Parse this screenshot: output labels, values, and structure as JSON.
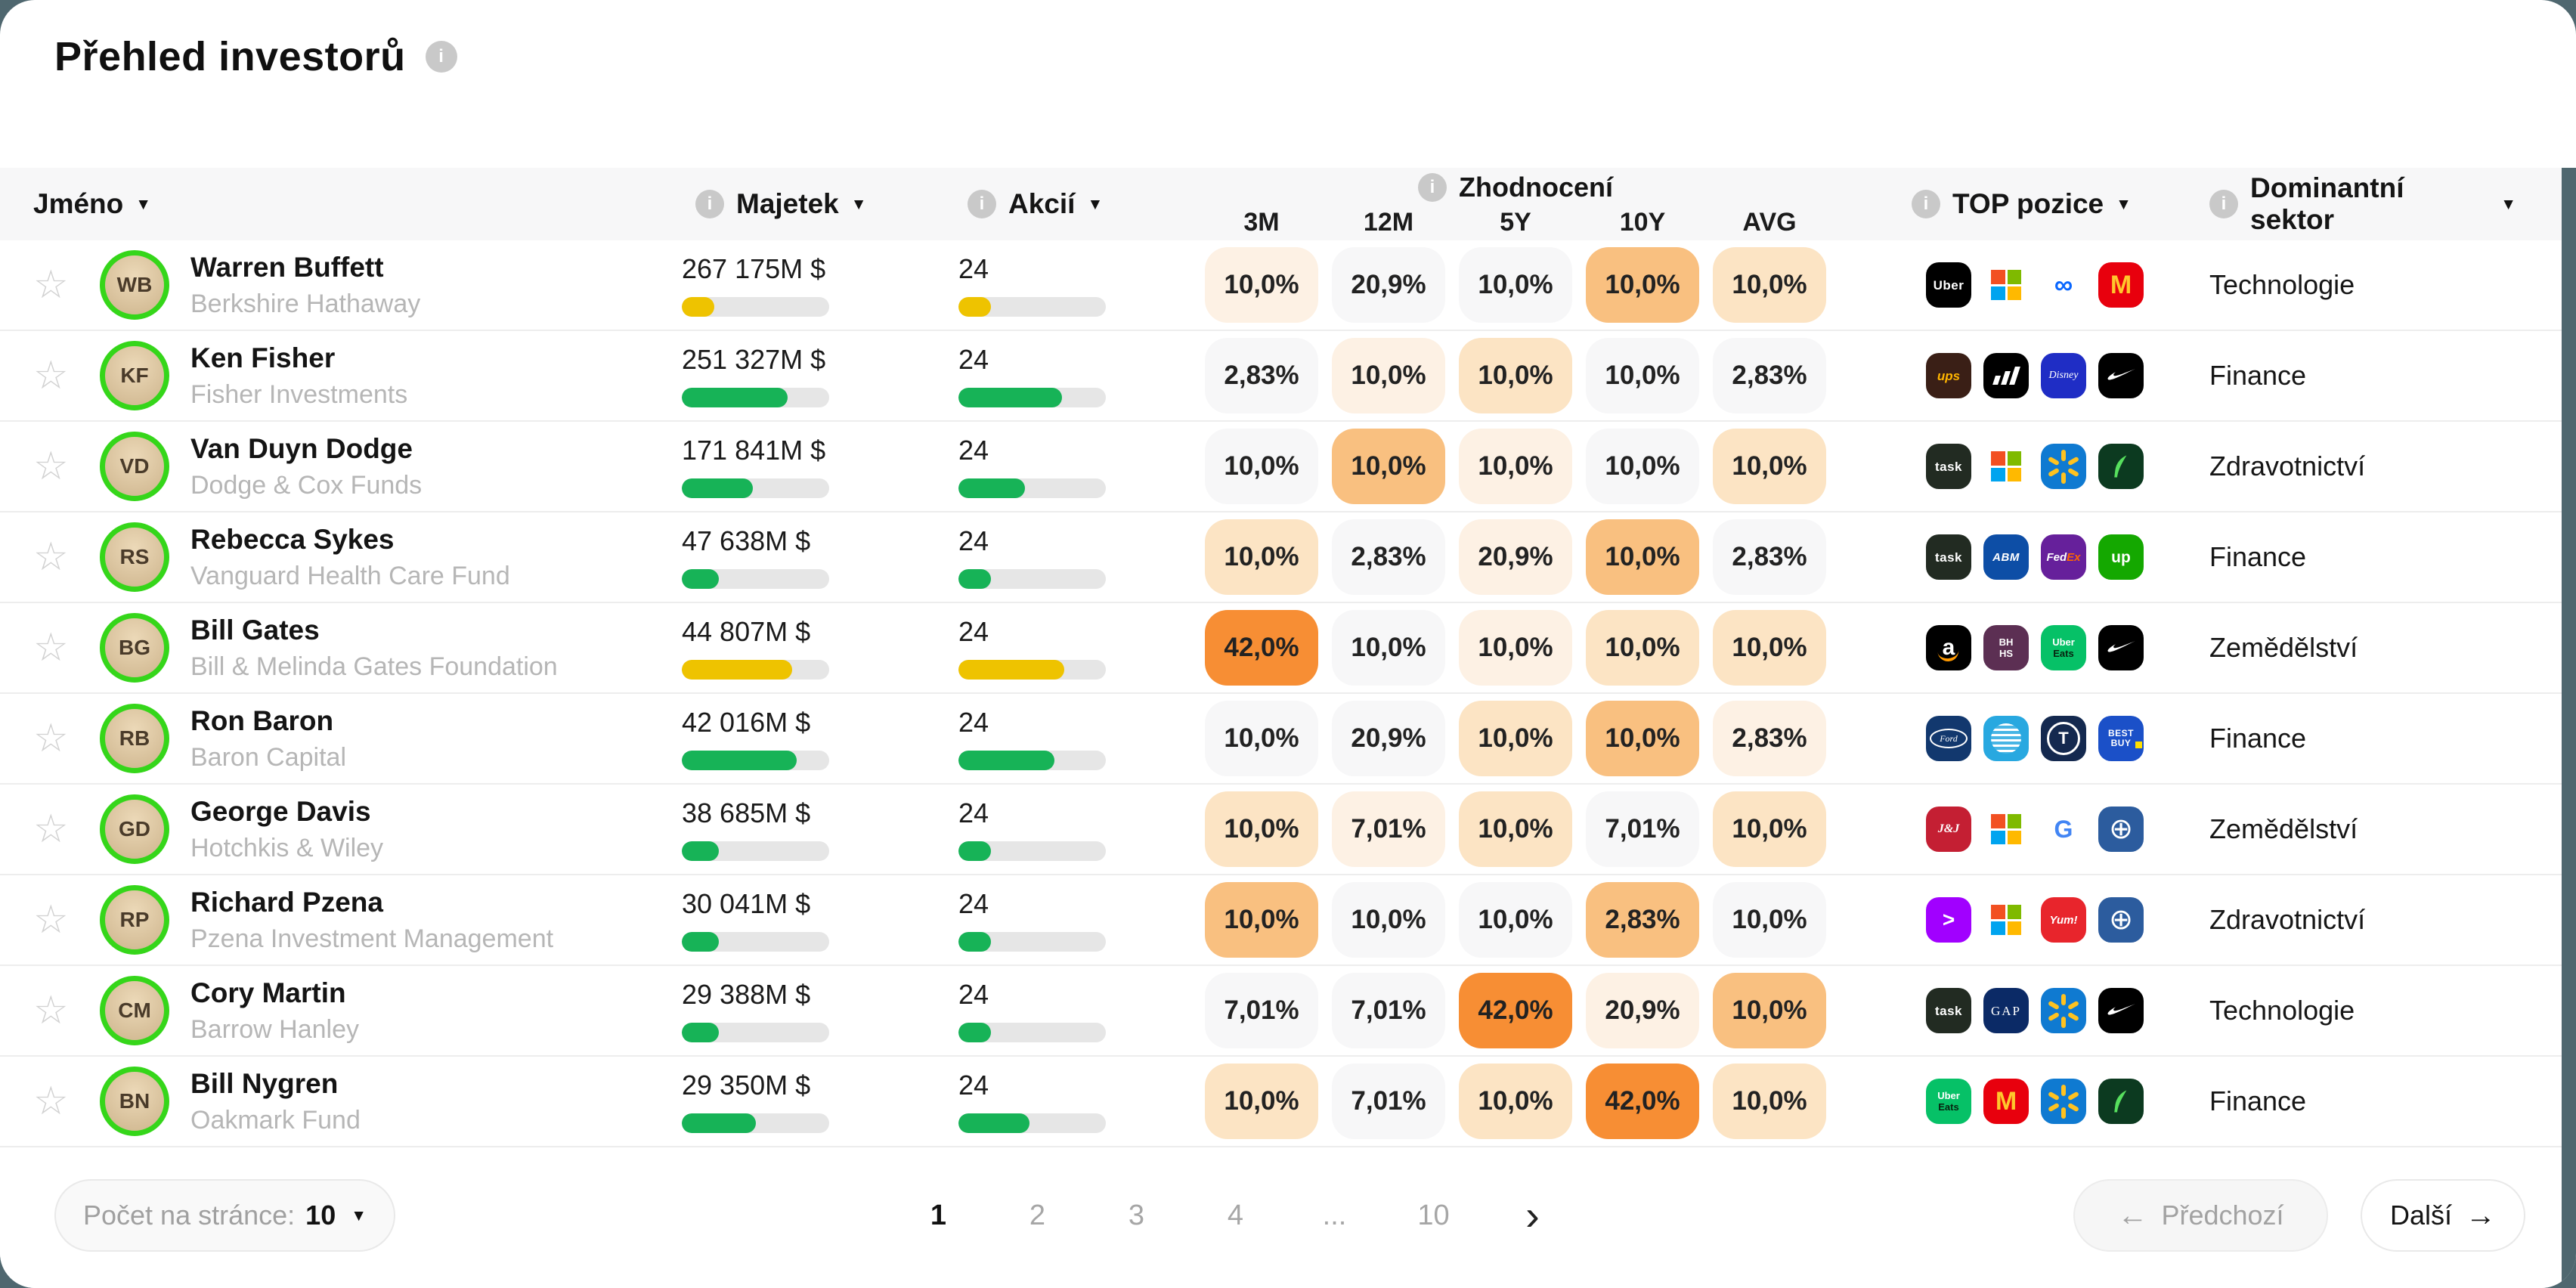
{
  "title": {
    "text": "Přehled investorů"
  },
  "header": {
    "name": "Jméno",
    "wealth": "Majetek",
    "shares": "Akcií",
    "returns": "Zhodnocení",
    "periods": [
      "3M",
      "12M",
      "5Y",
      "10Y",
      "AVG"
    ],
    "top_positions": "TOP pozice",
    "sector": "Dominantní sektor",
    "info_glyph": "i",
    "sort_caret": "▼"
  },
  "palette": {
    "cell_levels": [
      "#f7f7f8",
      "#fdf1e4",
      "#fce4c4",
      "#f9c080",
      "#f78e34"
    ],
    "bar_green": "#17b357",
    "bar_yellow": "#eec300",
    "avatar_ring": "#35d61a",
    "scrollbar": "#4f676f"
  },
  "rows": [
    {
      "name": "Warren Buffett",
      "company": "Berkshire Hathaway",
      "initials": "WB",
      "wealth": "267 175M $",
      "wealth_bar": {
        "pct": 22,
        "color": "yellow"
      },
      "shares": "24",
      "shares_bar": {
        "pct": 22,
        "color": "yellow"
      },
      "returns": [
        {
          "value": "10,0%",
          "level": 1
        },
        {
          "value": "20,9%",
          "level": 0
        },
        {
          "value": "10,0%",
          "level": 0
        },
        {
          "value": "10,0%",
          "level": 3
        },
        {
          "value": "10,0%",
          "level": 2
        }
      ],
      "positions": [
        {
          "name": "uber",
          "kind": "text",
          "bg": "#000000",
          "fg": "#ffffff",
          "label": "Uber"
        },
        {
          "name": "microsoft",
          "kind": "ms",
          "bg": "#ffffff"
        },
        {
          "name": "meta",
          "kind": "text",
          "bg": "#ffffff",
          "fg": "#0866ff",
          "label": "∞"
        },
        {
          "name": "mcdonalds",
          "kind": "text",
          "bg": "#e8000d",
          "fg": "#ffc72c",
          "label": "M"
        }
      ],
      "sector": "Technologie"
    },
    {
      "name": "Ken Fisher",
      "company": "Fisher Investments",
      "initials": "KF",
      "wealth": "251 327M $",
      "wealth_bar": {
        "pct": 72,
        "color": "green"
      },
      "shares": "24",
      "shares_bar": {
        "pct": 70,
        "color": "green"
      },
      "returns": [
        {
          "value": "2,83%",
          "level": 0
        },
        {
          "value": "10,0%",
          "level": 1
        },
        {
          "value": "10,0%",
          "level": 2
        },
        {
          "value": "10,0%",
          "level": 0
        },
        {
          "value": "2,83%",
          "level": 0
        }
      ],
      "positions": [
        {
          "name": "ups",
          "kind": "text",
          "bg": "#3a1f16",
          "fg": "#ffb500",
          "label": "ups"
        },
        {
          "name": "adidas",
          "kind": "adidas",
          "bg": "#000000"
        },
        {
          "name": "disney",
          "kind": "text",
          "bg": "#1f2dc5",
          "fg": "#ffffff",
          "label": "Disney"
        },
        {
          "name": "nike",
          "kind": "nike",
          "bg": "#000000"
        }
      ],
      "sector": "Finance"
    },
    {
      "name": "Van Duyn Dodge",
      "company": "Dodge & Cox Funds",
      "initials": "VD",
      "wealth": "171 841M $",
      "wealth_bar": {
        "pct": 48,
        "color": "green"
      },
      "shares": "24",
      "shares_bar": {
        "pct": 45,
        "color": "green"
      },
      "returns": [
        {
          "value": "10,0%",
          "level": 0
        },
        {
          "value": "10,0%",
          "level": 3
        },
        {
          "value": "10,0%",
          "level": 1
        },
        {
          "value": "10,0%",
          "level": 0
        },
        {
          "value": "10,0%",
          "level": 2
        }
      ],
      "positions": [
        {
          "name": "task",
          "kind": "text",
          "bg": "#222b22",
          "fg": "#ffffff",
          "label": "task"
        },
        {
          "name": "microsoft",
          "kind": "ms",
          "bg": "#ffffff"
        },
        {
          "name": "walmart",
          "kind": "walmart",
          "bg": "#0f7ad1"
        },
        {
          "name": "robinhood",
          "kind": "robinhood",
          "bg": "#0c3a20"
        }
      ],
      "sector": "Zdravotnictví"
    },
    {
      "name": "Rebecca Sykes",
      "company": "Vanguard Health Care Fund",
      "initials": "RS",
      "wealth": "47 638M $",
      "wealth_bar": {
        "pct": 25,
        "color": "green"
      },
      "shares": "24",
      "shares_bar": {
        "pct": 22,
        "color": "green"
      },
      "returns": [
        {
          "value": "10,0%",
          "level": 2
        },
        {
          "value": "2,83%",
          "level": 0
        },
        {
          "value": "20,9%",
          "level": 1
        },
        {
          "value": "10,0%",
          "level": 3
        },
        {
          "value": "2,83%",
          "level": 0
        }
      ],
      "positions": [
        {
          "name": "task",
          "kind": "text",
          "bg": "#222b22",
          "fg": "#ffffff",
          "label": "task"
        },
        {
          "name": "abm",
          "kind": "text",
          "bg": "#0d4ea6",
          "fg": "#ffffff",
          "label": "ABM"
        },
        {
          "name": "fedex",
          "kind": "fedex",
          "bg": "#66209b"
        },
        {
          "name": "upwork",
          "kind": "text",
          "bg": "#14a800",
          "fg": "#ffffff",
          "label": "up"
        }
      ],
      "sector": "Finance"
    },
    {
      "name": "Bill Gates",
      "company": "Bill & Melinda Gates Foundation",
      "initials": "BG",
      "wealth": "44 807M $",
      "wealth_bar": {
        "pct": 75,
        "color": "yellow"
      },
      "shares": "24",
      "shares_bar": {
        "pct": 72,
        "color": "yellow"
      },
      "returns": [
        {
          "value": "42,0%",
          "level": 4
        },
        {
          "value": "10,0%",
          "level": 0
        },
        {
          "value": "10,0%",
          "level": 1
        },
        {
          "value": "10,0%",
          "level": 2
        },
        {
          "value": "10,0%",
          "level": 2
        }
      ],
      "positions": [
        {
          "name": "amazon",
          "kind": "amazon",
          "bg": "#000000"
        },
        {
          "name": "bhhs",
          "kind": "text2",
          "bg": "#5c2f53",
          "lines": [
            {
              "t": "BH",
              "c": "#ffffff"
            },
            {
              "t": "HS",
              "c": "#ffffff"
            }
          ]
        },
        {
          "name": "ubereats",
          "kind": "text2",
          "bg": "#06c167",
          "lines": [
            {
              "t": "Uber",
              "c": "#ffffff"
            },
            {
              "t": "Eats",
              "c": "#08230f"
            }
          ]
        },
        {
          "name": "nike",
          "kind": "nike",
          "bg": "#000000"
        }
      ],
      "sector": "Zemědělství"
    },
    {
      "name": "Ron Baron",
      "company": "Baron Capital",
      "initials": "RB",
      "wealth": "42 016M $",
      "wealth_bar": {
        "pct": 78,
        "color": "green"
      },
      "shares": "24",
      "shares_bar": {
        "pct": 65,
        "color": "green"
      },
      "returns": [
        {
          "value": "10,0%",
          "level": 0
        },
        {
          "value": "20,9%",
          "level": 0
        },
        {
          "value": "10,0%",
          "level": 2
        },
        {
          "value": "10,0%",
          "level": 3
        },
        {
          "value": "2,83%",
          "level": 1
        }
      ],
      "positions": [
        {
          "name": "ford",
          "kind": "ford",
          "bg": "#12386e",
          "label": "Ford"
        },
        {
          "name": "att",
          "kind": "att",
          "bg": "#28a8e0"
        },
        {
          "name": "telekom",
          "kind": "telekom",
          "bg": "#14294f",
          "label": "T"
        },
        {
          "name": "bestbuy",
          "kind": "bestbuy",
          "bg": "#1b50c8",
          "lines": [
            "BEST",
            "BUY"
          ]
        }
      ],
      "sector": "Finance"
    },
    {
      "name": "George Davis",
      "company": "Hotchkis & Wiley",
      "initials": "GD",
      "wealth": "38 685M $",
      "wealth_bar": {
        "pct": 25,
        "color": "green"
      },
      "shares": "24",
      "shares_bar": {
        "pct": 22,
        "color": "green"
      },
      "returns": [
        {
          "value": "10,0%",
          "level": 2
        },
        {
          "value": "7,01%",
          "level": 1
        },
        {
          "value": "10,0%",
          "level": 2
        },
        {
          "value": "7,01%",
          "level": 0
        },
        {
          "value": "10,0%",
          "level": 2
        }
      ],
      "positions": [
        {
          "name": "jnj",
          "kind": "text",
          "bg": "#c41f33",
          "fg": "#ffffff",
          "label": "J&J"
        },
        {
          "name": "microsoft",
          "kind": "ms",
          "bg": "#ffffff"
        },
        {
          "name": "google",
          "kind": "text",
          "bg": "#ffffff",
          "fg": "#4285F4",
          "label": "G"
        },
        {
          "name": "globe",
          "kind": "text",
          "bg": "#2c5c9e",
          "fg": "#ffffff",
          "label": "⊕"
        }
      ],
      "sector": "Zemědělství"
    },
    {
      "name": "Richard Pzena",
      "company": "Pzena Investment Management",
      "initials": "RP",
      "wealth": "30 041M $",
      "wealth_bar": {
        "pct": 25,
        "color": "green"
      },
      "shares": "24",
      "shares_bar": {
        "pct": 22,
        "color": "green"
      },
      "returns": [
        {
          "value": "10,0%",
          "level": 3
        },
        {
          "value": "10,0%",
          "level": 0
        },
        {
          "value": "10,0%",
          "level": 0
        },
        {
          "value": "2,83%",
          "level": 3
        },
        {
          "value": "10,0%",
          "level": 0
        }
      ],
      "positions": [
        {
          "name": "accenture",
          "kind": "text",
          "bg": "#a100ff",
          "fg": "#ffffff",
          "label": ">"
        },
        {
          "name": "microsoft",
          "kind": "ms",
          "bg": "#ffffff"
        },
        {
          "name": "yum",
          "kind": "text",
          "bg": "#e8252c",
          "fg": "#ffffff",
          "label": "Yum!"
        },
        {
          "name": "globe",
          "kind": "text",
          "bg": "#2c5c9e",
          "fg": "#ffffff",
          "label": "⊕"
        }
      ],
      "sector": "Zdravotnictví"
    },
    {
      "name": "Cory Martin",
      "company": "Barrow Hanley",
      "initials": "CM",
      "wealth": "29 388M $",
      "wealth_bar": {
        "pct": 25,
        "color": "green"
      },
      "shares": "24",
      "shares_bar": {
        "pct": 22,
        "color": "green"
      },
      "returns": [
        {
          "value": "7,01%",
          "level": 0
        },
        {
          "value": "7,01%",
          "level": 0
        },
        {
          "value": "42,0%",
          "level": 4
        },
        {
          "value": "20,9%",
          "level": 1
        },
        {
          "value": "10,0%",
          "level": 3
        }
      ],
      "positions": [
        {
          "name": "task",
          "kind": "text",
          "bg": "#222b22",
          "fg": "#ffffff",
          "label": "task"
        },
        {
          "name": "gap",
          "kind": "text",
          "bg": "#0b2a66",
          "fg": "#ffffff",
          "label": "GAP"
        },
        {
          "name": "walmart",
          "kind": "walmart",
          "bg": "#0f7ad1"
        },
        {
          "name": "nike",
          "kind": "nike",
          "bg": "#000000"
        }
      ],
      "sector": "Technologie"
    },
    {
      "name": "Bill Nygren",
      "company": "Oakmark Fund",
      "initials": "BN",
      "wealth": "29 350M $",
      "wealth_bar": {
        "pct": 50,
        "color": "green"
      },
      "shares": "24",
      "shares_bar": {
        "pct": 48,
        "color": "green"
      },
      "returns": [
        {
          "value": "10,0%",
          "level": 2
        },
        {
          "value": "7,01%",
          "level": 0
        },
        {
          "value": "10,0%",
          "level": 2
        },
        {
          "value": "42,0%",
          "level": 4
        },
        {
          "value": "10,0%",
          "level": 2
        }
      ],
      "positions": [
        {
          "name": "ubereats",
          "kind": "text2",
          "bg": "#06c167",
          "lines": [
            {
              "t": "Uber",
              "c": "#ffffff"
            },
            {
              "t": "Eats",
              "c": "#08230f"
            }
          ]
        },
        {
          "name": "mcdonalds",
          "kind": "text",
          "bg": "#e8000d",
          "fg": "#ffc72c",
          "label": "M"
        },
        {
          "name": "walmart",
          "kind": "walmart",
          "bg": "#0f7ad1"
        },
        {
          "name": "robinhood",
          "kind": "robinhood",
          "bg": "#0c3a20"
        }
      ],
      "sector": "Finance"
    }
  ],
  "footer": {
    "page_size_label": "Počet na stránce:",
    "page_size": "10",
    "pages": [
      "1",
      "2",
      "3",
      "4",
      "...",
      "10"
    ],
    "active_page": "1",
    "chevron": "›",
    "prev": "Předchozí",
    "next": "Další",
    "prev_arrow": "←",
    "next_arrow": "→"
  }
}
